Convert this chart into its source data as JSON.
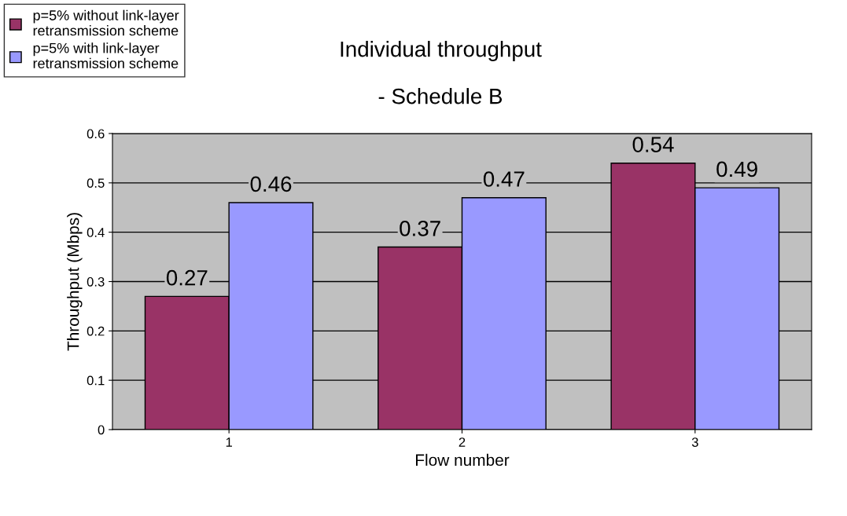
{
  "chart_data": {
    "type": "bar",
    "title": "Individual throughput",
    "subtitle": "- Schedule B",
    "xlabel": "Flow number",
    "ylabel": "Throughput (Mbps)",
    "categories": [
      "1",
      "2",
      "3"
    ],
    "series": [
      {
        "name": "p=5% without link-layer\nretransmission scheme",
        "color": "#993366",
        "values": [
          0.27,
          0.37,
          0.54
        ]
      },
      {
        "name": "p=5% with link-layer\nretransmission scheme",
        "color": "#9999ff",
        "values": [
          0.46,
          0.47,
          0.49
        ]
      }
    ],
    "ylim": [
      0,
      0.6
    ],
    "yticks": [
      0,
      0.1,
      0.2,
      0.3,
      0.4,
      0.5,
      0.6
    ],
    "grid": "y",
    "legend": "top left",
    "data_labels": true
  }
}
